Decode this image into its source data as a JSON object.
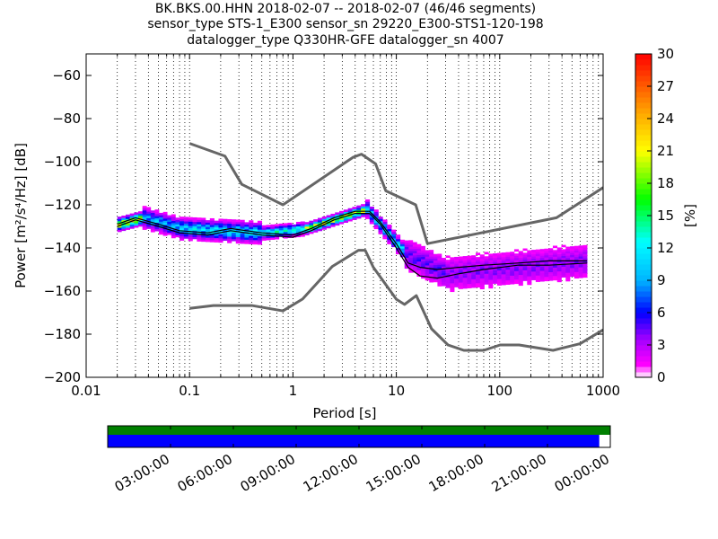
{
  "chart_data": {
    "type": "heatmap",
    "title_lines": [
      "BK.BKS.00.HHN   2018-02-07 -- 2018-02-07  (46/46 segments)",
      "sensor_type STS-1_E300 sensor_sn 29220_E300-STS1-120-198",
      "datalogger_type Q330HR-GFE datalogger_sn 4007"
    ],
    "xlabel": "Period [s]",
    "ylabel": "Power [m²/s⁴/Hz] [dB]",
    "x_scale": "log",
    "xlim": [
      0.01,
      1000
    ],
    "ylim": [
      -200,
      -50
    ],
    "x_ticks": [
      0.01,
      0.1,
      1,
      10,
      100,
      1000
    ],
    "x_tick_labels": [
      "0.01",
      "0.1",
      "1",
      "10",
      "100",
      "1000"
    ],
    "y_ticks": [
      -200,
      -180,
      -160,
      -140,
      -120,
      -100,
      -80,
      -60
    ],
    "y_tick_labels": [
      "−200",
      "−180",
      "−160",
      "−140",
      "−120",
      "−100",
      "−80",
      "−60"
    ],
    "grid": "dotted vertical",
    "colorbar": {
      "label": "[%]",
      "min": 0,
      "max": 30,
      "ticks": [
        0,
        3,
        6,
        9,
        12,
        15,
        18,
        21,
        24,
        27,
        30
      ],
      "tick_labels": [
        "0",
        "3",
        "6",
        "9",
        "12",
        "15",
        "18",
        "21",
        "24",
        "27",
        "30"
      ]
    },
    "nhnm": {
      "color": "#666666",
      "x": [
        0.1,
        0.22,
        0.32,
        0.8,
        3.8,
        4.6,
        6.3,
        7.9,
        15.4,
        20,
        354,
        1000
      ],
      "y": [
        -91.5,
        -97.4,
        -110.5,
        -120,
        -98,
        -96.5,
        -101,
        -113.5,
        -120,
        -138,
        -126,
        -112
      ]
    },
    "nlnm": {
      "color": "#666666",
      "x": [
        0.1,
        0.17,
        0.4,
        0.8,
        1.24,
        2.4,
        4.3,
        5,
        6,
        10,
        12,
        15.6,
        21.9,
        31.6,
        45,
        70,
        101,
        154,
        328,
        600,
        1000
      ],
      "y": [
        -168,
        -166.7,
        -166.7,
        -169.2,
        -163.7,
        -148.6,
        -141.1,
        -141.1,
        -149,
        -163.8,
        -166.2,
        -162.1,
        -177.5,
        -185,
        -187.5,
        -187.5,
        -185,
        -185,
        -187.5,
        -184.4,
        -178
      ]
    },
    "mean_curve": {
      "x": [
        0.02,
        0.03,
        0.05,
        0.08,
        0.15,
        0.25,
        0.5,
        1,
        1.5,
        2.5,
        4,
        5.5,
        7,
        10,
        13,
        17,
        25,
        40,
        70,
        150,
        300,
        700
      ],
      "y": [
        -129,
        -126,
        -129,
        -132,
        -133,
        -131,
        -133,
        -134,
        -131,
        -126,
        -123,
        -123,
        -128,
        -138,
        -147,
        -149,
        -150,
        -149,
        -148,
        -147,
        -146,
        -146
      ]
    },
    "mode_curve": {
      "x": [
        0.02,
        0.03,
        0.05,
        0.08,
        0.15,
        0.25,
        0.5,
        1,
        1.5,
        2.5,
        4,
        5.5,
        7,
        10,
        13,
        17,
        25,
        40,
        70,
        150,
        300,
        700
      ],
      "y": [
        -130,
        -127,
        -130,
        -133,
        -134,
        -132,
        -134,
        -135,
        -132,
        -127,
        -124,
        -124,
        -129,
        -140,
        -149,
        -153,
        -154,
        -152,
        -150,
        -148,
        -148,
        -147
      ]
    },
    "density_bands": [
      {
        "x": [
          0.02,
          0.035
        ],
        "center_y": [
          -129,
          -126
        ],
        "spread": 3,
        "peak": 27
      },
      {
        "x": [
          0.035,
          0.08
        ],
        "center_y": [
          -126,
          -131
        ],
        "spread": 5,
        "peak": 12
      },
      {
        "x": [
          0.08,
          0.5
        ],
        "center_y": [
          -131,
          -133
        ],
        "spread": 5,
        "peak": 14
      },
      {
        "x": [
          0.5,
          1.3
        ],
        "center_y": [
          -133,
          -131
        ],
        "spread": 3,
        "peak": 16
      },
      {
        "x": [
          1.3,
          5
        ],
        "center_y": [
          -131,
          -122
        ],
        "spread": 2.5,
        "peak": 24
      },
      {
        "x": [
          5,
          12
        ],
        "center_y": [
          -122,
          -143
        ],
        "spread": 4,
        "peak": 14
      },
      {
        "x": [
          12,
          30
        ],
        "center_y": [
          -143,
          -152
        ],
        "spread": 9,
        "peak": 6
      },
      {
        "x": [
          30,
          700
        ],
        "center_y": [
          -152,
          -146
        ],
        "spread": 10,
        "peak": 5
      }
    ],
    "coverage": {
      "time_ticks": [
        "03:00:00",
        "06:00:00",
        "09:00:00",
        "12:00:00",
        "15:00:00",
        "18:00:00",
        "21:00:00",
        "00:00:00"
      ],
      "data_fraction": 0.978,
      "gap_color": "#008000",
      "data_color": "#0000ff"
    }
  }
}
